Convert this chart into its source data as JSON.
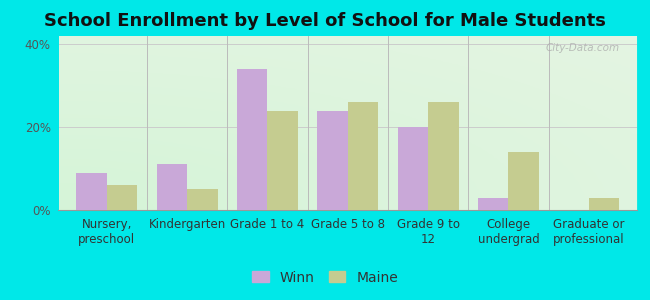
{
  "title": "School Enrollment by Level of School for Male Students",
  "categories": [
    "Nursery,\npreschool",
    "Kindergarten",
    "Grade 1 to 4",
    "Grade 5 to 8",
    "Grade 9 to\n12",
    "College\nundergrad",
    "Graduate or\nprofessional"
  ],
  "winn": [
    9,
    11,
    34,
    24,
    20,
    3,
    0
  ],
  "maine": [
    6,
    5,
    24,
    26,
    26,
    14,
    3
  ],
  "winn_color": "#c9a8d8",
  "maine_color": "#c5cc90",
  "bg_color": "#00e8e8",
  "plot_bg_color": "#e8f5e8",
  "ylim": [
    0,
    42
  ],
  "yticks": [
    0,
    20,
    40
  ],
  "ytick_labels": [
    "0%",
    "20%",
    "40%"
  ],
  "legend_labels": [
    "Winn",
    "Maine"
  ],
  "watermark": "City-Data.com",
  "title_fontsize": 13,
  "tick_fontsize": 8.5,
  "legend_fontsize": 10
}
